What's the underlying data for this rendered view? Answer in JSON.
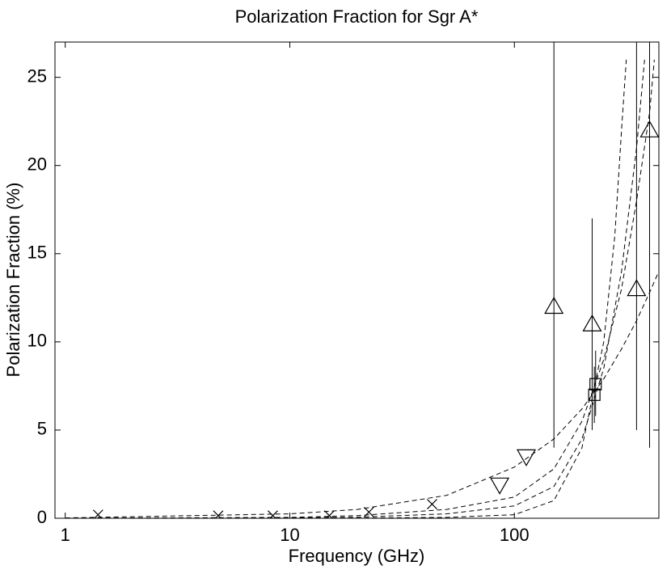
{
  "chart_data": {
    "type": "scatter",
    "title": "Polarization Fraction for Sgr A*",
    "x_label": "Frequency (GHz)",
    "y_label": "Polarization Fraction (%)",
    "x_scale": "log",
    "xlim": [
      0.9,
      440
    ],
    "xticks": [
      1,
      10,
      100
    ],
    "ylim": [
      0,
      27
    ],
    "yticks": [
      0,
      5,
      10,
      15,
      20,
      25
    ],
    "grid": false,
    "series": [
      {
        "marker": "x",
        "color": "#000000",
        "x": [
          1.4,
          4.8,
          8.4,
          15,
          22.5,
          43
        ],
        "values": [
          0.2,
          0.15,
          0.15,
          0.15,
          0.35,
          0.8
        ]
      },
      {
        "marker": "triangle-down",
        "color": "#000000",
        "x": [
          86,
          113
        ],
        "values": [
          1.9,
          3.5
        ]
      },
      {
        "marker": "triangle-up",
        "color": "#000000",
        "x": [
          150,
          222,
          350,
          400
        ],
        "values": [
          12,
          11,
          13,
          22
        ],
        "err_minus": [
          8,
          6,
          8,
          18
        ],
        "err_plus": [
          16,
          6,
          15,
          6
        ]
      },
      {
        "marker": "square",
        "color": "#000000",
        "x": [
          227,
          230
        ],
        "values": [
          7,
          7.6
        ],
        "err_minus": [
          1.6,
          1.8
        ],
        "err_plus": [
          1.6,
          1.9
        ]
      },
      {
        "marker": "none",
        "line": "dashed",
        "color": "#000000",
        "x": [
          1,
          10,
          20,
          50,
          100,
          150,
          200,
          250,
          300,
          350,
          400,
          440
        ],
        "values": [
          0.02,
          0.25,
          0.5,
          1.3,
          2.9,
          4.5,
          6.2,
          7.9,
          9.6,
          11.2,
          12.8,
          14
        ]
      },
      {
        "marker": "none",
        "line": "dashed",
        "color": "#000000",
        "x": [
          1,
          10,
          20,
          50,
          100,
          150,
          200,
          250,
          300,
          350,
          400,
          420
        ],
        "values": [
          0,
          0.05,
          0.15,
          0.5,
          1.2,
          2.8,
          5.5,
          9,
          13,
          18,
          23,
          26
        ]
      },
      {
        "marker": "none",
        "line": "dashed",
        "color": "#000000",
        "x": [
          1,
          10,
          20,
          50,
          100,
          150,
          200,
          250,
          300,
          350,
          380
        ],
        "values": [
          0,
          0.02,
          0.06,
          0.25,
          0.7,
          1.8,
          4.5,
          8.5,
          14,
          21,
          26
        ]
      },
      {
        "marker": "none",
        "line": "dashed",
        "color": "#000000",
        "x": [
          1,
          10,
          20,
          50,
          100,
          150,
          200,
          250,
          280,
          300,
          315
        ],
        "values": [
          0,
          0,
          0.01,
          0.05,
          0.2,
          1,
          4,
          10,
          16,
          22,
          26
        ]
      }
    ]
  }
}
